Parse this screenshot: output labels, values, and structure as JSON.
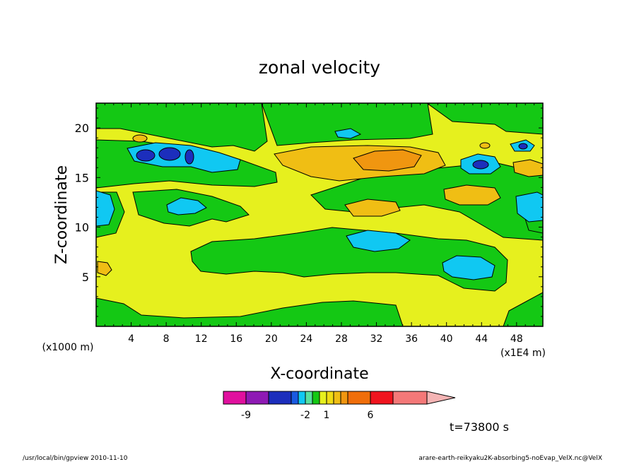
{
  "chart_data": {
    "type": "heatmap",
    "title": "zonal velocity",
    "xlabel": "X-coordinate",
    "ylabel": "Z-coordinate",
    "x_unit": "(x1E4 m)",
    "y_unit": "(x1000 m)",
    "xlim": [
      0,
      51
    ],
    "ylim": [
      0,
      22.5
    ],
    "x_ticks": [
      4,
      8,
      12,
      16,
      20,
      24,
      28,
      32,
      36,
      40,
      44,
      48
    ],
    "y_ticks": [
      5,
      10,
      15,
      20
    ],
    "grid": false,
    "colorbar": {
      "levels": [
        -12,
        -9,
        -6,
        -4,
        -3,
        -2,
        -1,
        0,
        1,
        2,
        3,
        4,
        6,
        9,
        12
      ],
      "colors": [
        "#e0109e",
        "#8e1ab4",
        "#1c2ebc",
        "#1a5ae0",
        "#10c8f2",
        "#58e0a0",
        "#14c814",
        "#e6f01e",
        "#f0dc14",
        "#f0be14",
        "#f09610",
        "#f06e0a",
        "#f0141e",
        "#f47878",
        "#f4b4b4"
      ],
      "labels": [
        {
          "value": -9,
          "text": "-9"
        },
        {
          "value": -2,
          "text": "-2"
        },
        {
          "value": 1,
          "text": "1"
        },
        {
          "value": 6,
          "text": "6"
        }
      ]
    },
    "features": [
      {
        "x": 8.5,
        "z": 18,
        "value": -4
      },
      {
        "x": 44,
        "z": 16.5,
        "value": -4
      },
      {
        "x": 48,
        "z": 18,
        "value": -4
      },
      {
        "x": 30,
        "z": 17,
        "value": 2
      },
      {
        "x": 33,
        "z": 17.2,
        "value": 3
      },
      {
        "x": 44,
        "z": 13,
        "value": 2
      },
      {
        "x": 30,
        "z": 12.5,
        "value": 2
      },
      {
        "x": 30,
        "z": 8.8,
        "value": -1
      },
      {
        "x": 42,
        "z": 6,
        "value": -1
      },
      {
        "x": 1,
        "z": 12,
        "value": -1
      },
      {
        "x": 50,
        "z": 12,
        "value": -1
      },
      {
        "x": 10.5,
        "z": 12.5,
        "value": -1
      }
    ],
    "time_label": "t=73800 s"
  },
  "footer": {
    "left": "/usr/local/bin/gpview  2010-11-10",
    "right": "arare-earth-reikyaku2K-absorbing5-noEvap_VelX.nc@VelX"
  }
}
